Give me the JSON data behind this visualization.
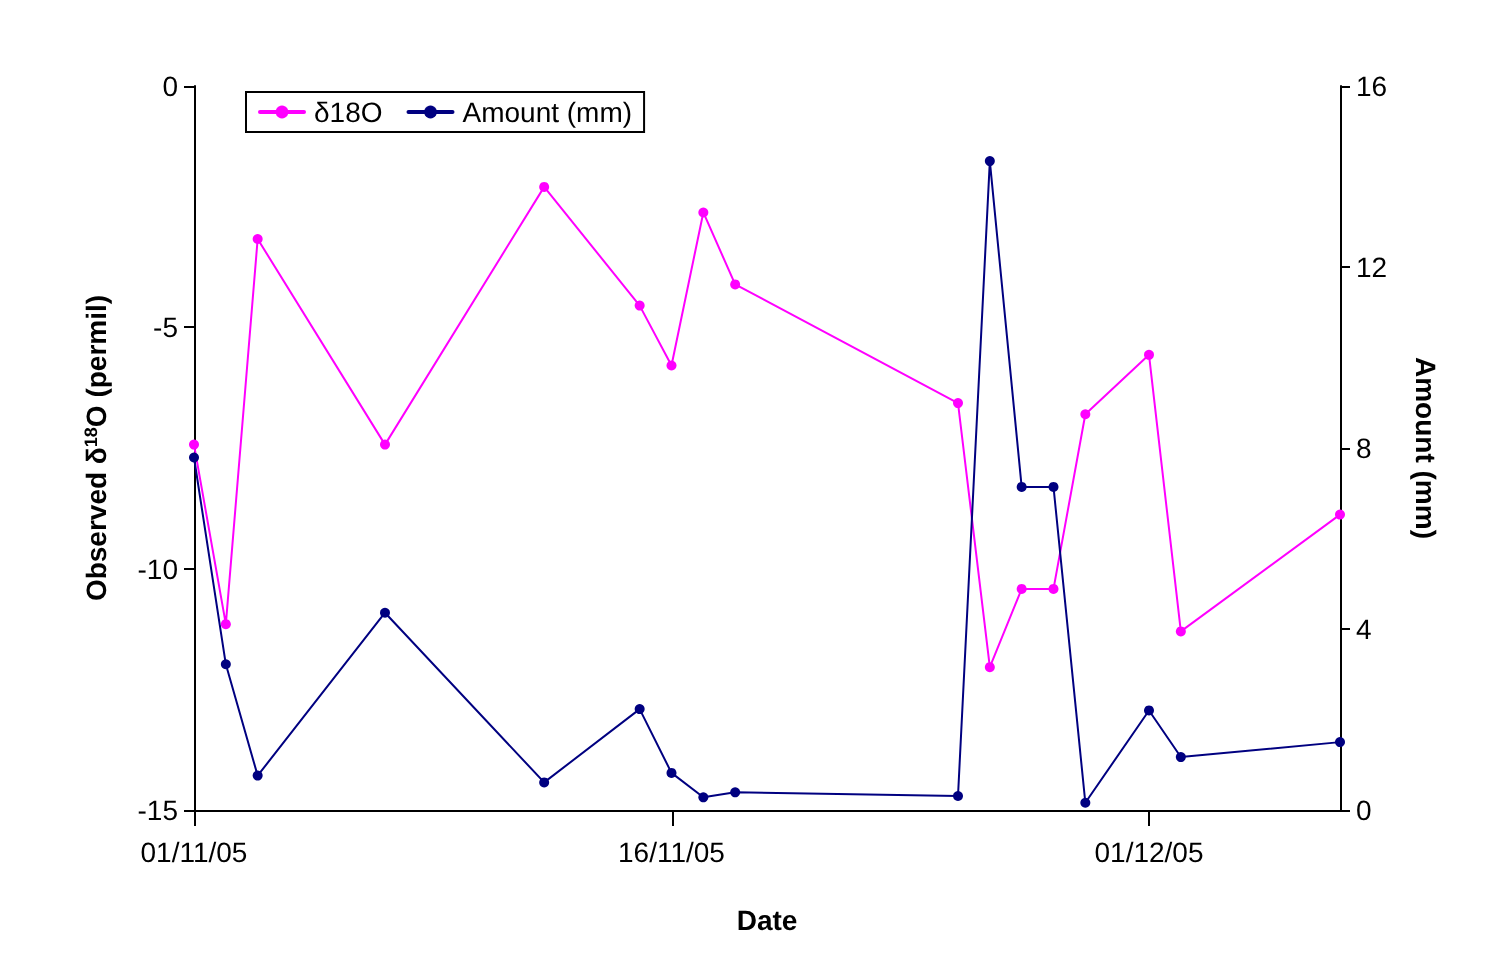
{
  "chart_data": {
    "type": "line",
    "xlabel": "Date",
    "ylabel": "Observed δ$^{18}$O (permil)",
    "y2label": "Amount (mm)",
    "x": [
      "2005-11-01",
      "2005-11-02",
      "2005-11-03",
      "2005-11-07",
      "2005-11-12",
      "2005-11-15",
      "2005-11-16",
      "2005-11-17",
      "2005-11-18",
      "2005-11-25",
      "2005-11-26",
      "2005-11-27",
      "2005-11-28",
      "2005-11-29",
      "2005-12-01",
      "2005-12-02",
      "2005-12-07"
    ],
    "series": [
      {
        "name": "δ18O",
        "color": "#ff00ff",
        "values": [
          -7.43,
          -11.15,
          -3.17,
          -7.43,
          -2.09,
          -4.55,
          -5.79,
          -2.62,
          -4.11,
          -6.57,
          -12.04,
          -10.42,
          -10.42,
          -6.8,
          -5.57,
          -11.3,
          -8.88
        ]
      },
      {
        "name": "Amount (mm)",
        "color": "#000080",
        "axis": "y2",
        "values": [
          7.79,
          3.22,
          0.76,
          4.36,
          0.61,
          2.23,
          0.82,
          0.28,
          0.39,
          0.31,
          14.34,
          7.14,
          7.14,
          0.16,
          2.2,
          1.17,
          1.5
        ]
      }
    ],
    "xlim": [
      "2005-11-01",
      "2005-12-07"
    ],
    "xticks": [
      {
        "value": "2005-11-01",
        "label": "01/11/05"
      },
      {
        "value": "2005-11-16",
        "label": "16/11/05"
      },
      {
        "value": "2005-12-01",
        "label": "01/12/05"
      }
    ],
    "ylim": [
      -15,
      0
    ],
    "yticks": [
      -15,
      -10,
      -5,
      0
    ],
    "y2lim": [
      0,
      16
    ],
    "y2ticks": [
      0,
      4,
      8,
      12,
      16
    ],
    "legend": "top left",
    "grid": false,
    "marker": "circle",
    "line_style": "solid"
  }
}
